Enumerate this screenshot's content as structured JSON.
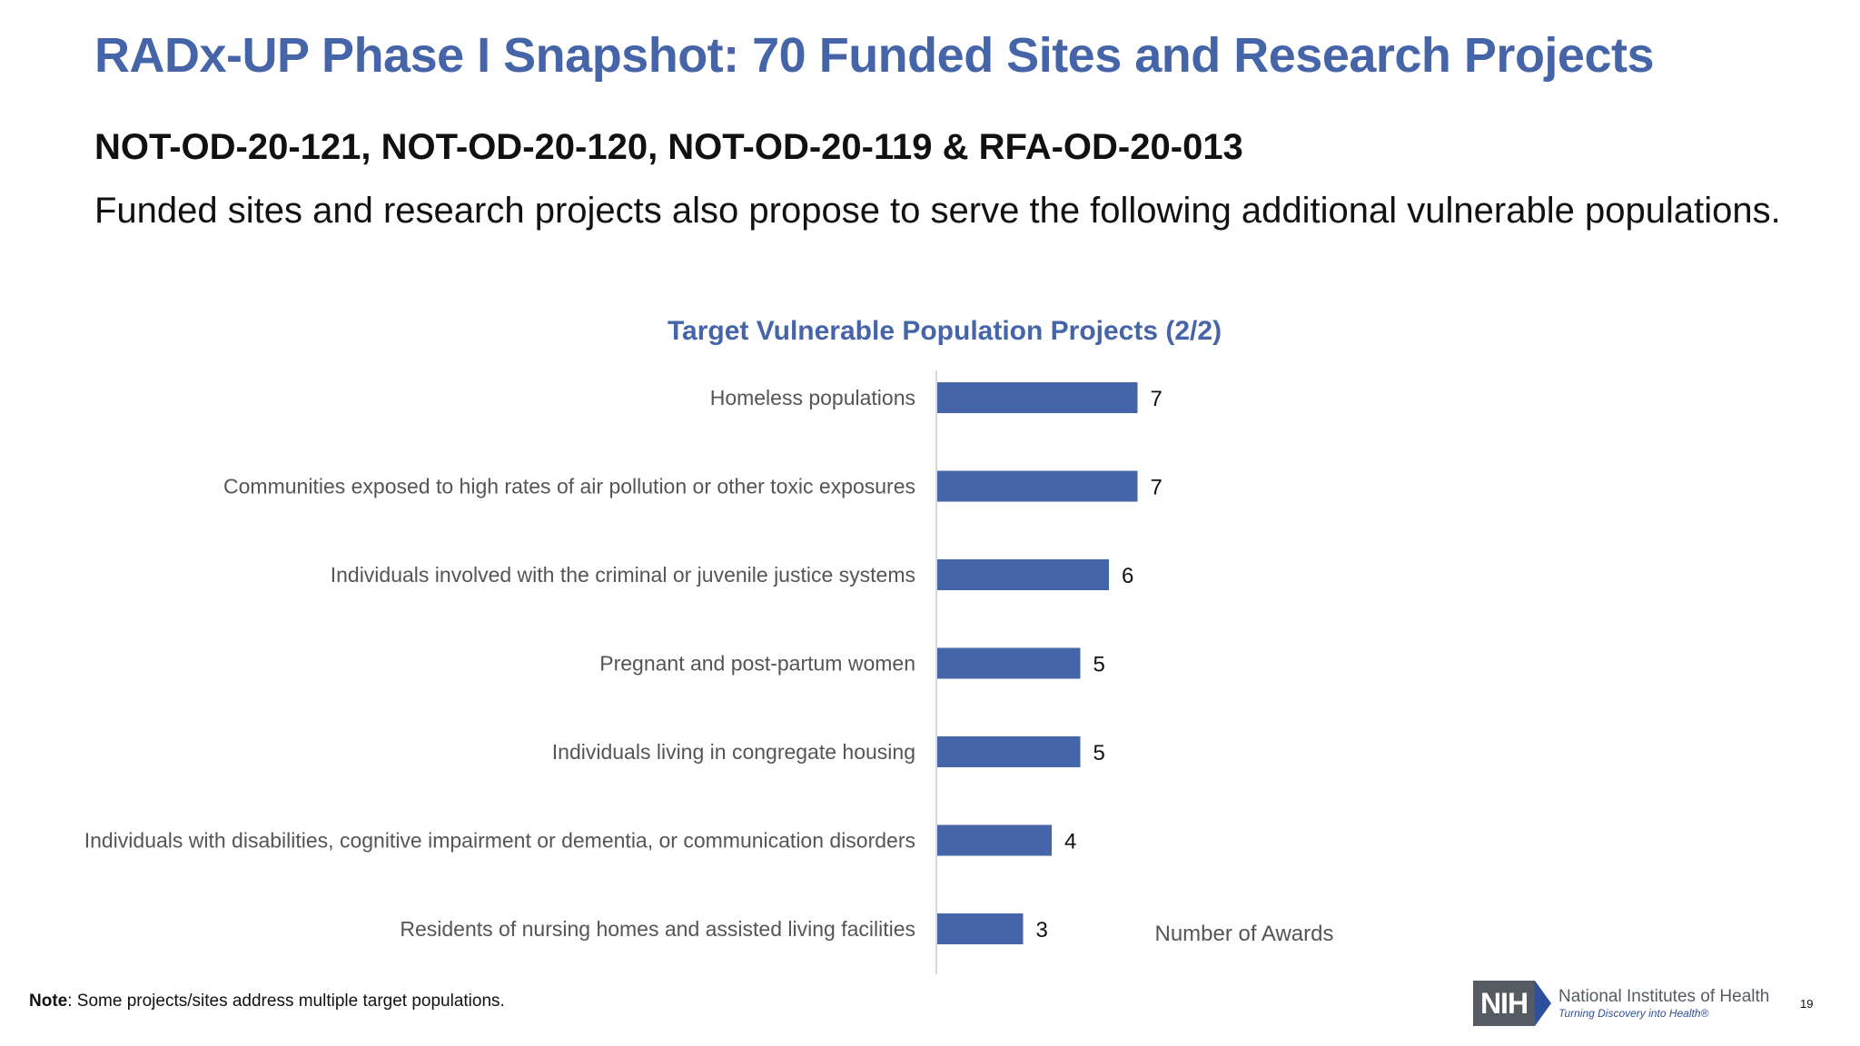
{
  "slide": {
    "title": "RADx-UP Phase I Snapshot: 70 Funded Sites and Research Projects",
    "subtitle": "NOT-OD-20-121, NOT-OD-20-120, NOT-OD-20-119 & RFA-OD-20-013",
    "description": "Funded sites and research projects also propose to serve the following additional vulnerable populations."
  },
  "chart_data": {
    "type": "bar",
    "orientation": "horizontal",
    "title": "Target Vulnerable Population Projects (2/2)",
    "xlabel": "Number of Awards",
    "ylabel": "",
    "categories": [
      "Homeless populations",
      "Communities exposed to high rates of air pollution or other toxic exposures",
      "Individuals involved with the criminal or juvenile justice systems",
      "Pregnant and post-partum women",
      "Individuals living in congregate housing",
      "Individuals with disabilities, cognitive impairment or dementia, or communication disorders",
      "Residents of nursing homes and assisted living facilities"
    ],
    "values": [
      7,
      7,
      6,
      5,
      5,
      4,
      3
    ],
    "data_labels": true,
    "grid": false,
    "bar_color": "#4565a8"
  },
  "footer": {
    "note_label": "Note",
    "note_text": ": Some projects/sites address multiple target populations.",
    "logo_mark": "NIH",
    "logo_name": "National Institutes of Health",
    "logo_tagline": "Turning Discovery into Health®",
    "page_number": "19"
  }
}
